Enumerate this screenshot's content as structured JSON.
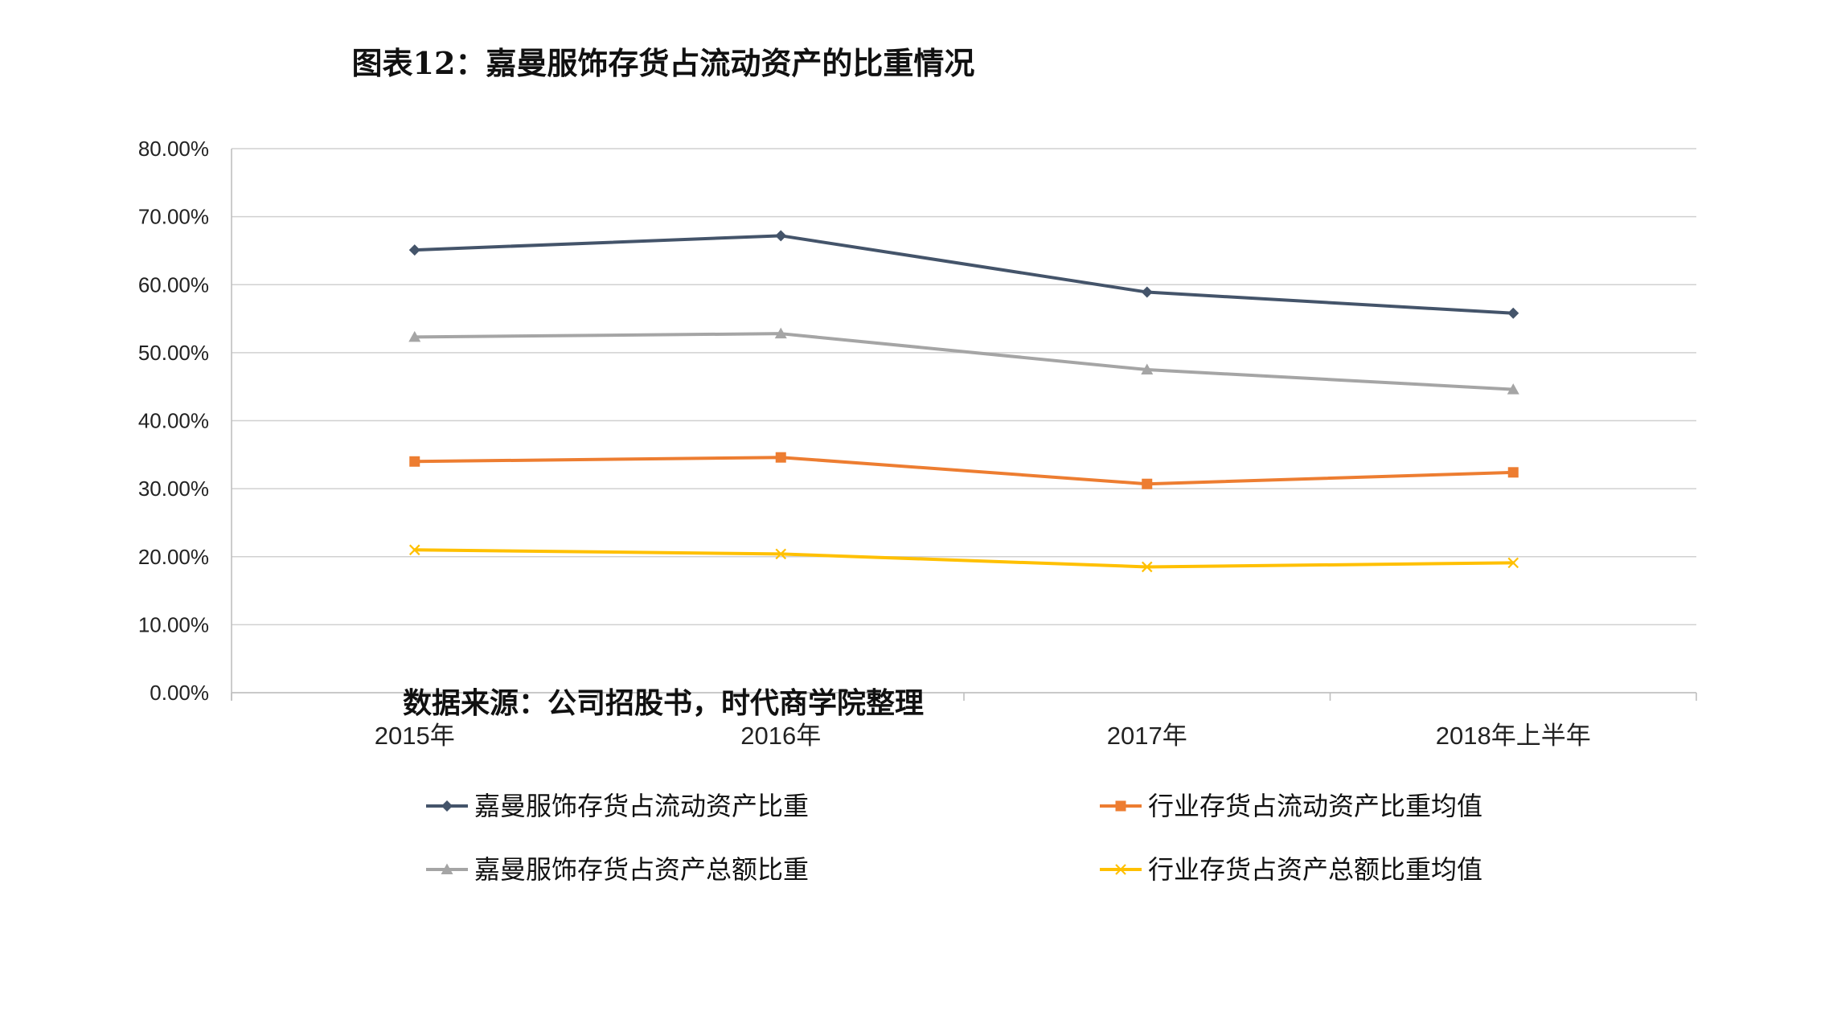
{
  "chart_data": {
    "type": "line",
    "title": "图表12：嘉曼服饰存货占流动资产的比重情况",
    "xlabel": "",
    "ylabel": "",
    "categories": [
      "2015年",
      "2016年",
      "2017年",
      "2018年上半年"
    ],
    "ylim": [
      0,
      80
    ],
    "yticks": [
      "0.00%",
      "10.00%",
      "20.00%",
      "30.00%",
      "40.00%",
      "50.00%",
      "60.00%",
      "70.00%",
      "80.00%"
    ],
    "grid": true,
    "legend_position": "bottom",
    "series": [
      {
        "name": "嘉曼服饰存货占流动资产比重",
        "values": [
          65.1,
          67.2,
          58.9,
          55.8
        ],
        "color": "#44546A",
        "marker": "diamond"
      },
      {
        "name": "行业存货占流动资产比重均值",
        "values": [
          34.0,
          34.6,
          30.7,
          32.4
        ],
        "color": "#ED7D31",
        "marker": "square"
      },
      {
        "name": "嘉曼服饰存货占资产总额比重",
        "values": [
          52.3,
          52.8,
          47.5,
          44.6
        ],
        "color": "#A5A5A5",
        "marker": "triangle"
      },
      {
        "name": "行业存货占资产总额比重均值",
        "values": [
          21.0,
          20.4,
          18.5,
          19.1
        ],
        "color": "#FFC000",
        "marker": "x"
      }
    ]
  },
  "source": "数据来源：公司招股书，时代商学院整理"
}
